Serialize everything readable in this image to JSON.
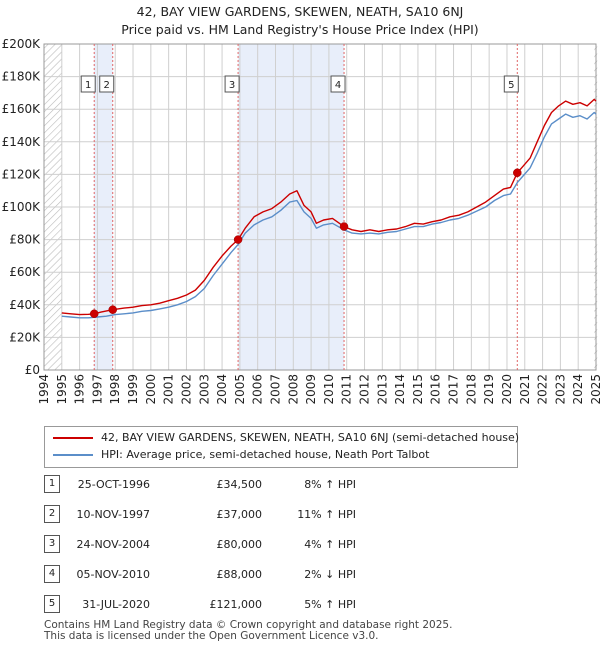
{
  "chart_data": {
    "type": "line",
    "title": "42, BAY VIEW GARDENS, SKEWEN, NEATH, SA10 6NJ",
    "subtitle": "Price paid vs. HM Land Registry's House Price Index (HPI)",
    "xlabel": "",
    "ylabel": "",
    "xlim": [
      1994,
      2025
    ],
    "ylim": [
      0,
      200000
    ],
    "y_ticks": [
      0,
      20000,
      40000,
      60000,
      80000,
      100000,
      120000,
      140000,
      160000,
      180000,
      200000
    ],
    "y_tick_labels": [
      "£0",
      "£20K",
      "£40K",
      "£60K",
      "£80K",
      "£100K",
      "£120K",
      "£140K",
      "£160K",
      "£180K",
      "£200K"
    ],
    "x_ticks": [
      1994,
      1995,
      1996,
      1997,
      1998,
      1999,
      2000,
      2001,
      2002,
      2003,
      2004,
      2005,
      2006,
      2007,
      2008,
      2009,
      2010,
      2011,
      2012,
      2013,
      2014,
      2015,
      2016,
      2017,
      2018,
      2019,
      2020,
      2021,
      2022,
      2023,
      2024,
      2025
    ],
    "x_tick_labels": [
      "1994",
      "1995",
      "1996",
      "1997",
      "1998",
      "1999",
      "2000",
      "2001",
      "2002",
      "2003",
      "2004",
      "2005",
      "2006",
      "2007",
      "2008",
      "2009",
      "2010",
      "2011",
      "2012",
      "2013",
      "2014",
      "2015",
      "2016",
      "2017",
      "2018",
      "2019",
      "2020",
      "2021",
      "2022",
      "2023",
      "2024",
      "2025"
    ],
    "grid": true,
    "series": [
      {
        "name": "42, BAY VIEW GARDENS, SKEWEN, NEATH, SA10 6NJ (semi-detached house)",
        "color": "#cc0000",
        "points": [
          [
            1995.0,
            35000
          ],
          [
            1995.5,
            34500
          ],
          [
            1996.0,
            34000
          ],
          [
            1996.5,
            34200
          ],
          [
            1996.82,
            34500
          ],
          [
            1997.2,
            35500
          ],
          [
            1997.86,
            37000
          ],
          [
            1998.5,
            38000
          ],
          [
            1999.0,
            38500
          ],
          [
            1999.5,
            39500
          ],
          [
            2000.0,
            40000
          ],
          [
            2000.5,
            41000
          ],
          [
            2001.0,
            42500
          ],
          [
            2001.5,
            44000
          ],
          [
            2002.0,
            46000
          ],
          [
            2002.5,
            49000
          ],
          [
            2003.0,
            55000
          ],
          [
            2003.5,
            63000
          ],
          [
            2004.0,
            70000
          ],
          [
            2004.5,
            76000
          ],
          [
            2004.9,
            80000
          ],
          [
            2005.3,
            87000
          ],
          [
            2005.8,
            94000
          ],
          [
            2006.3,
            97000
          ],
          [
            2006.8,
            99000
          ],
          [
            2007.3,
            103000
          ],
          [
            2007.8,
            108000
          ],
          [
            2008.2,
            110000
          ],
          [
            2008.6,
            101000
          ],
          [
            2009.0,
            97000
          ],
          [
            2009.3,
            90000
          ],
          [
            2009.7,
            92000
          ],
          [
            2010.2,
            93000
          ],
          [
            2010.85,
            88000
          ],
          [
            2011.3,
            86000
          ],
          [
            2011.8,
            85000
          ],
          [
            2012.3,
            86000
          ],
          [
            2012.8,
            85000
          ],
          [
            2013.3,
            86000
          ],
          [
            2013.8,
            86500
          ],
          [
            2014.3,
            88000
          ],
          [
            2014.8,
            90000
          ],
          [
            2015.3,
            89500
          ],
          [
            2015.8,
            91000
          ],
          [
            2016.3,
            92000
          ],
          [
            2016.8,
            94000
          ],
          [
            2017.3,
            95000
          ],
          [
            2017.8,
            97000
          ],
          [
            2018.3,
            100000
          ],
          [
            2018.8,
            103000
          ],
          [
            2019.3,
            107000
          ],
          [
            2019.8,
            111000
          ],
          [
            2020.2,
            112000
          ],
          [
            2020.58,
            121000
          ],
          [
            2020.9,
            125000
          ],
          [
            2021.3,
            130000
          ],
          [
            2021.7,
            140000
          ],
          [
            2022.1,
            150000
          ],
          [
            2022.5,
            158000
          ],
          [
            2022.9,
            162000
          ],
          [
            2023.3,
            165000
          ],
          [
            2023.7,
            163000
          ],
          [
            2024.1,
            164000
          ],
          [
            2024.5,
            162000
          ],
          [
            2024.9,
            166000
          ],
          [
            2025.0,
            165000
          ]
        ]
      },
      {
        "name": "HPI: Average price, semi-detached house, Neath Port Talbot",
        "color": "#5b8ec9",
        "points": [
          [
            1995.0,
            33000
          ],
          [
            1995.5,
            32500
          ],
          [
            1996.0,
            32000
          ],
          [
            1996.5,
            32000
          ],
          [
            1997.0,
            32500
          ],
          [
            1997.5,
            33000
          ],
          [
            1998.0,
            34000
          ],
          [
            1998.5,
            34500
          ],
          [
            1999.0,
            35000
          ],
          [
            1999.5,
            36000
          ],
          [
            2000.0,
            36500
          ],
          [
            2000.5,
            37500
          ],
          [
            2001.0,
            38500
          ],
          [
            2001.5,
            40000
          ],
          [
            2002.0,
            42000
          ],
          [
            2002.5,
            45000
          ],
          [
            2003.0,
            50000
          ],
          [
            2003.5,
            58000
          ],
          [
            2004.0,
            65000
          ],
          [
            2004.5,
            72000
          ],
          [
            2004.9,
            77000
          ],
          [
            2005.3,
            84000
          ],
          [
            2005.8,
            89000
          ],
          [
            2006.3,
            92000
          ],
          [
            2006.8,
            94000
          ],
          [
            2007.3,
            98000
          ],
          [
            2007.8,
            103000
          ],
          [
            2008.2,
            104000
          ],
          [
            2008.6,
            97000
          ],
          [
            2009.0,
            93000
          ],
          [
            2009.3,
            87000
          ],
          [
            2009.7,
            89000
          ],
          [
            2010.2,
            90000
          ],
          [
            2010.85,
            86000
          ],
          [
            2011.3,
            84000
          ],
          [
            2011.8,
            83500
          ],
          [
            2012.3,
            84000
          ],
          [
            2012.8,
            83500
          ],
          [
            2013.3,
            84500
          ],
          [
            2013.8,
            85000
          ],
          [
            2014.3,
            86500
          ],
          [
            2014.8,
            88000
          ],
          [
            2015.3,
            88000
          ],
          [
            2015.8,
            89500
          ],
          [
            2016.3,
            90500
          ],
          [
            2016.8,
            92000
          ],
          [
            2017.3,
            93000
          ],
          [
            2017.8,
            95000
          ],
          [
            2018.3,
            97500
          ],
          [
            2018.8,
            100000
          ],
          [
            2019.3,
            104000
          ],
          [
            2019.8,
            107000
          ],
          [
            2020.2,
            108000
          ],
          [
            2020.58,
            115000
          ],
          [
            2020.9,
            119000
          ],
          [
            2021.3,
            124000
          ],
          [
            2021.7,
            133000
          ],
          [
            2022.1,
            143000
          ],
          [
            2022.5,
            151000
          ],
          [
            2022.9,
            154000
          ],
          [
            2023.3,
            157000
          ],
          [
            2023.7,
            155000
          ],
          [
            2024.1,
            156000
          ],
          [
            2024.5,
            154000
          ],
          [
            2024.9,
            158000
          ],
          [
            2025.0,
            157000
          ]
        ]
      }
    ],
    "sale_markers": [
      {
        "label": "1",
        "x": 1996.82,
        "y": 34500
      },
      {
        "label": "2",
        "x": 1997.86,
        "y": 37000
      },
      {
        "label": "3",
        "x": 2004.9,
        "y": 80000
      },
      {
        "label": "4",
        "x": 2010.85,
        "y": 88000
      },
      {
        "label": "5",
        "x": 2020.58,
        "y": 121000
      }
    ],
    "shaded_ranges": [
      [
        1996.82,
        1997.86
      ],
      [
        2004.9,
        2010.85
      ]
    ],
    "hatched_ranges": [
      [
        1994.0,
        1995.0
      ],
      [
        2024.9,
        2025.0
      ]
    ],
    "colors": {
      "price_line": "#cc0000",
      "hpi_line": "#5b8ec9",
      "shade": "#e8eefa",
      "grid": "#cfcfcf",
      "marker_line": "#e06666"
    }
  },
  "legend": {
    "price_label": "42, BAY VIEW GARDENS, SKEWEN, NEATH, SA10 6NJ (semi-detached house)",
    "hpi_label": "HPI: Average price, semi-detached house, Neath Port Talbot"
  },
  "sales": [
    {
      "num": "1",
      "date": "25-OCT-1996",
      "price": "£34,500",
      "hpi": "8% ↑ HPI"
    },
    {
      "num": "2",
      "date": "10-NOV-1997",
      "price": "£37,000",
      "hpi": "11% ↑ HPI"
    },
    {
      "num": "3",
      "date": "24-NOV-2004",
      "price": "£80,000",
      "hpi": "4% ↑ HPI"
    },
    {
      "num": "4",
      "date": "05-NOV-2010",
      "price": "£88,000",
      "hpi": "2% ↓ HPI"
    },
    {
      "num": "5",
      "date": "31-JUL-2020",
      "price": "£121,000",
      "hpi": "5% ↑ HPI"
    }
  ],
  "footer": {
    "line1": "Contains HM Land Registry data © Crown copyright and database right 2025.",
    "line2": "This data is licensed under the Open Government Licence v3.0."
  }
}
